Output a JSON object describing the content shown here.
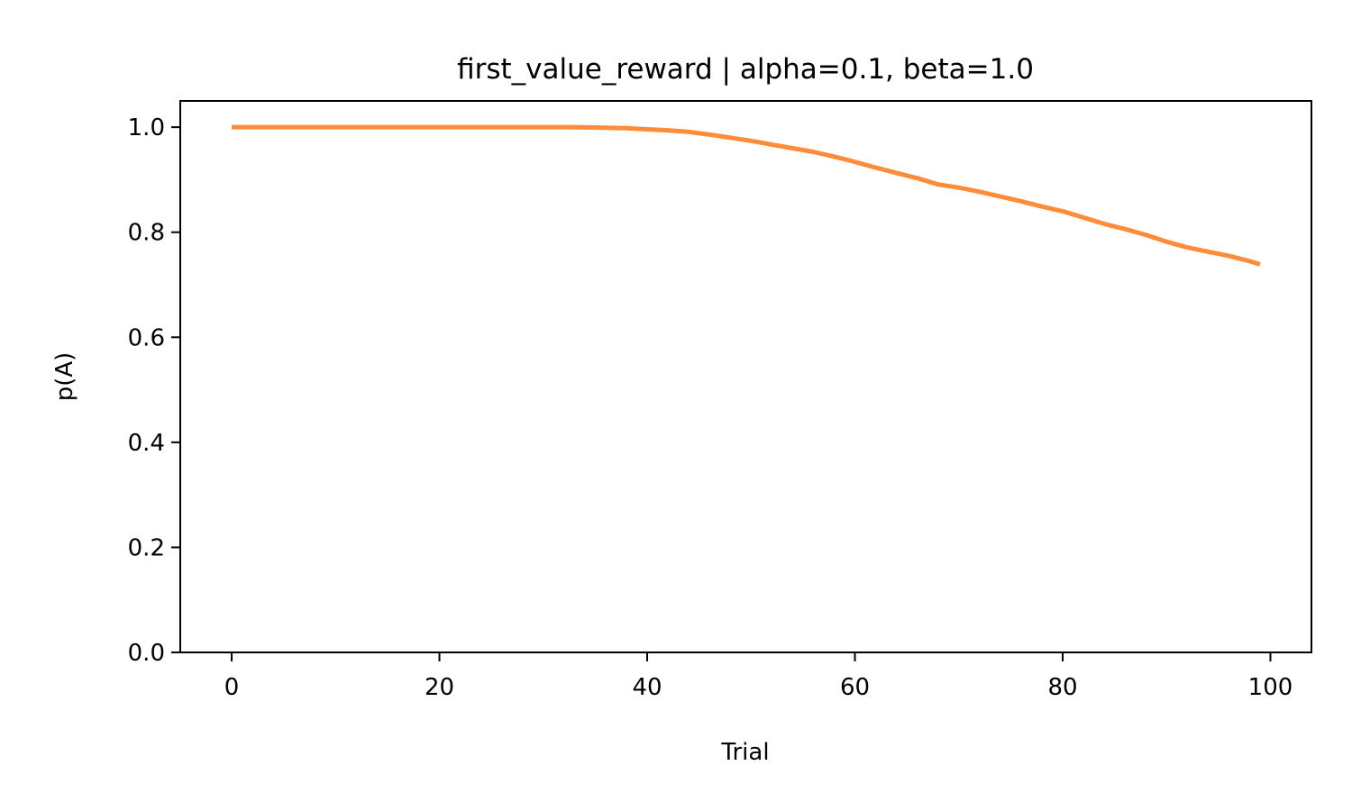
{
  "chart_data": {
    "type": "line",
    "title": "first_value_reward | alpha=0.1, beta=1.0",
    "xlabel": "Trial",
    "ylabel": "p(A)",
    "xlim": [
      -4.95,
      103.95
    ],
    "ylim": [
      0.0,
      1.05
    ],
    "xticks": [
      0,
      20,
      40,
      60,
      80,
      100
    ],
    "xtick_labels": [
      "0",
      "20",
      "40",
      "60",
      "80",
      "100"
    ],
    "yticks": [
      0.0,
      0.2,
      0.4,
      0.6,
      0.8,
      1.0
    ],
    "ytick_labels": [
      "0.0",
      "0.2",
      "0.4",
      "0.6",
      "0.8",
      "1.0"
    ],
    "grid": false,
    "series": [
      {
        "color": "#ff8c3a",
        "x": [
          0,
          5,
          10,
          15,
          20,
          25,
          30,
          33,
          36,
          38,
          40,
          42,
          44,
          46,
          48,
          50,
          52,
          54,
          56,
          58,
          60,
          62,
          64,
          66,
          68,
          70,
          72,
          74,
          76,
          78,
          80,
          82,
          84,
          86,
          88,
          90,
          92,
          94,
          96,
          98,
          99
        ],
        "y": [
          1.0,
          1.0,
          1.0,
          1.0,
          1.0,
          1.0,
          1.0,
          1.0,
          0.999,
          0.998,
          0.996,
          0.994,
          0.991,
          0.986,
          0.98,
          0.974,
          0.967,
          0.96,
          0.953,
          0.944,
          0.934,
          0.923,
          0.913,
          0.903,
          0.891,
          0.885,
          0.877,
          0.868,
          0.859,
          0.849,
          0.84,
          0.828,
          0.816,
          0.806,
          0.795,
          0.782,
          0.771,
          0.763,
          0.755,
          0.745,
          0.739
        ]
      }
    ]
  }
}
